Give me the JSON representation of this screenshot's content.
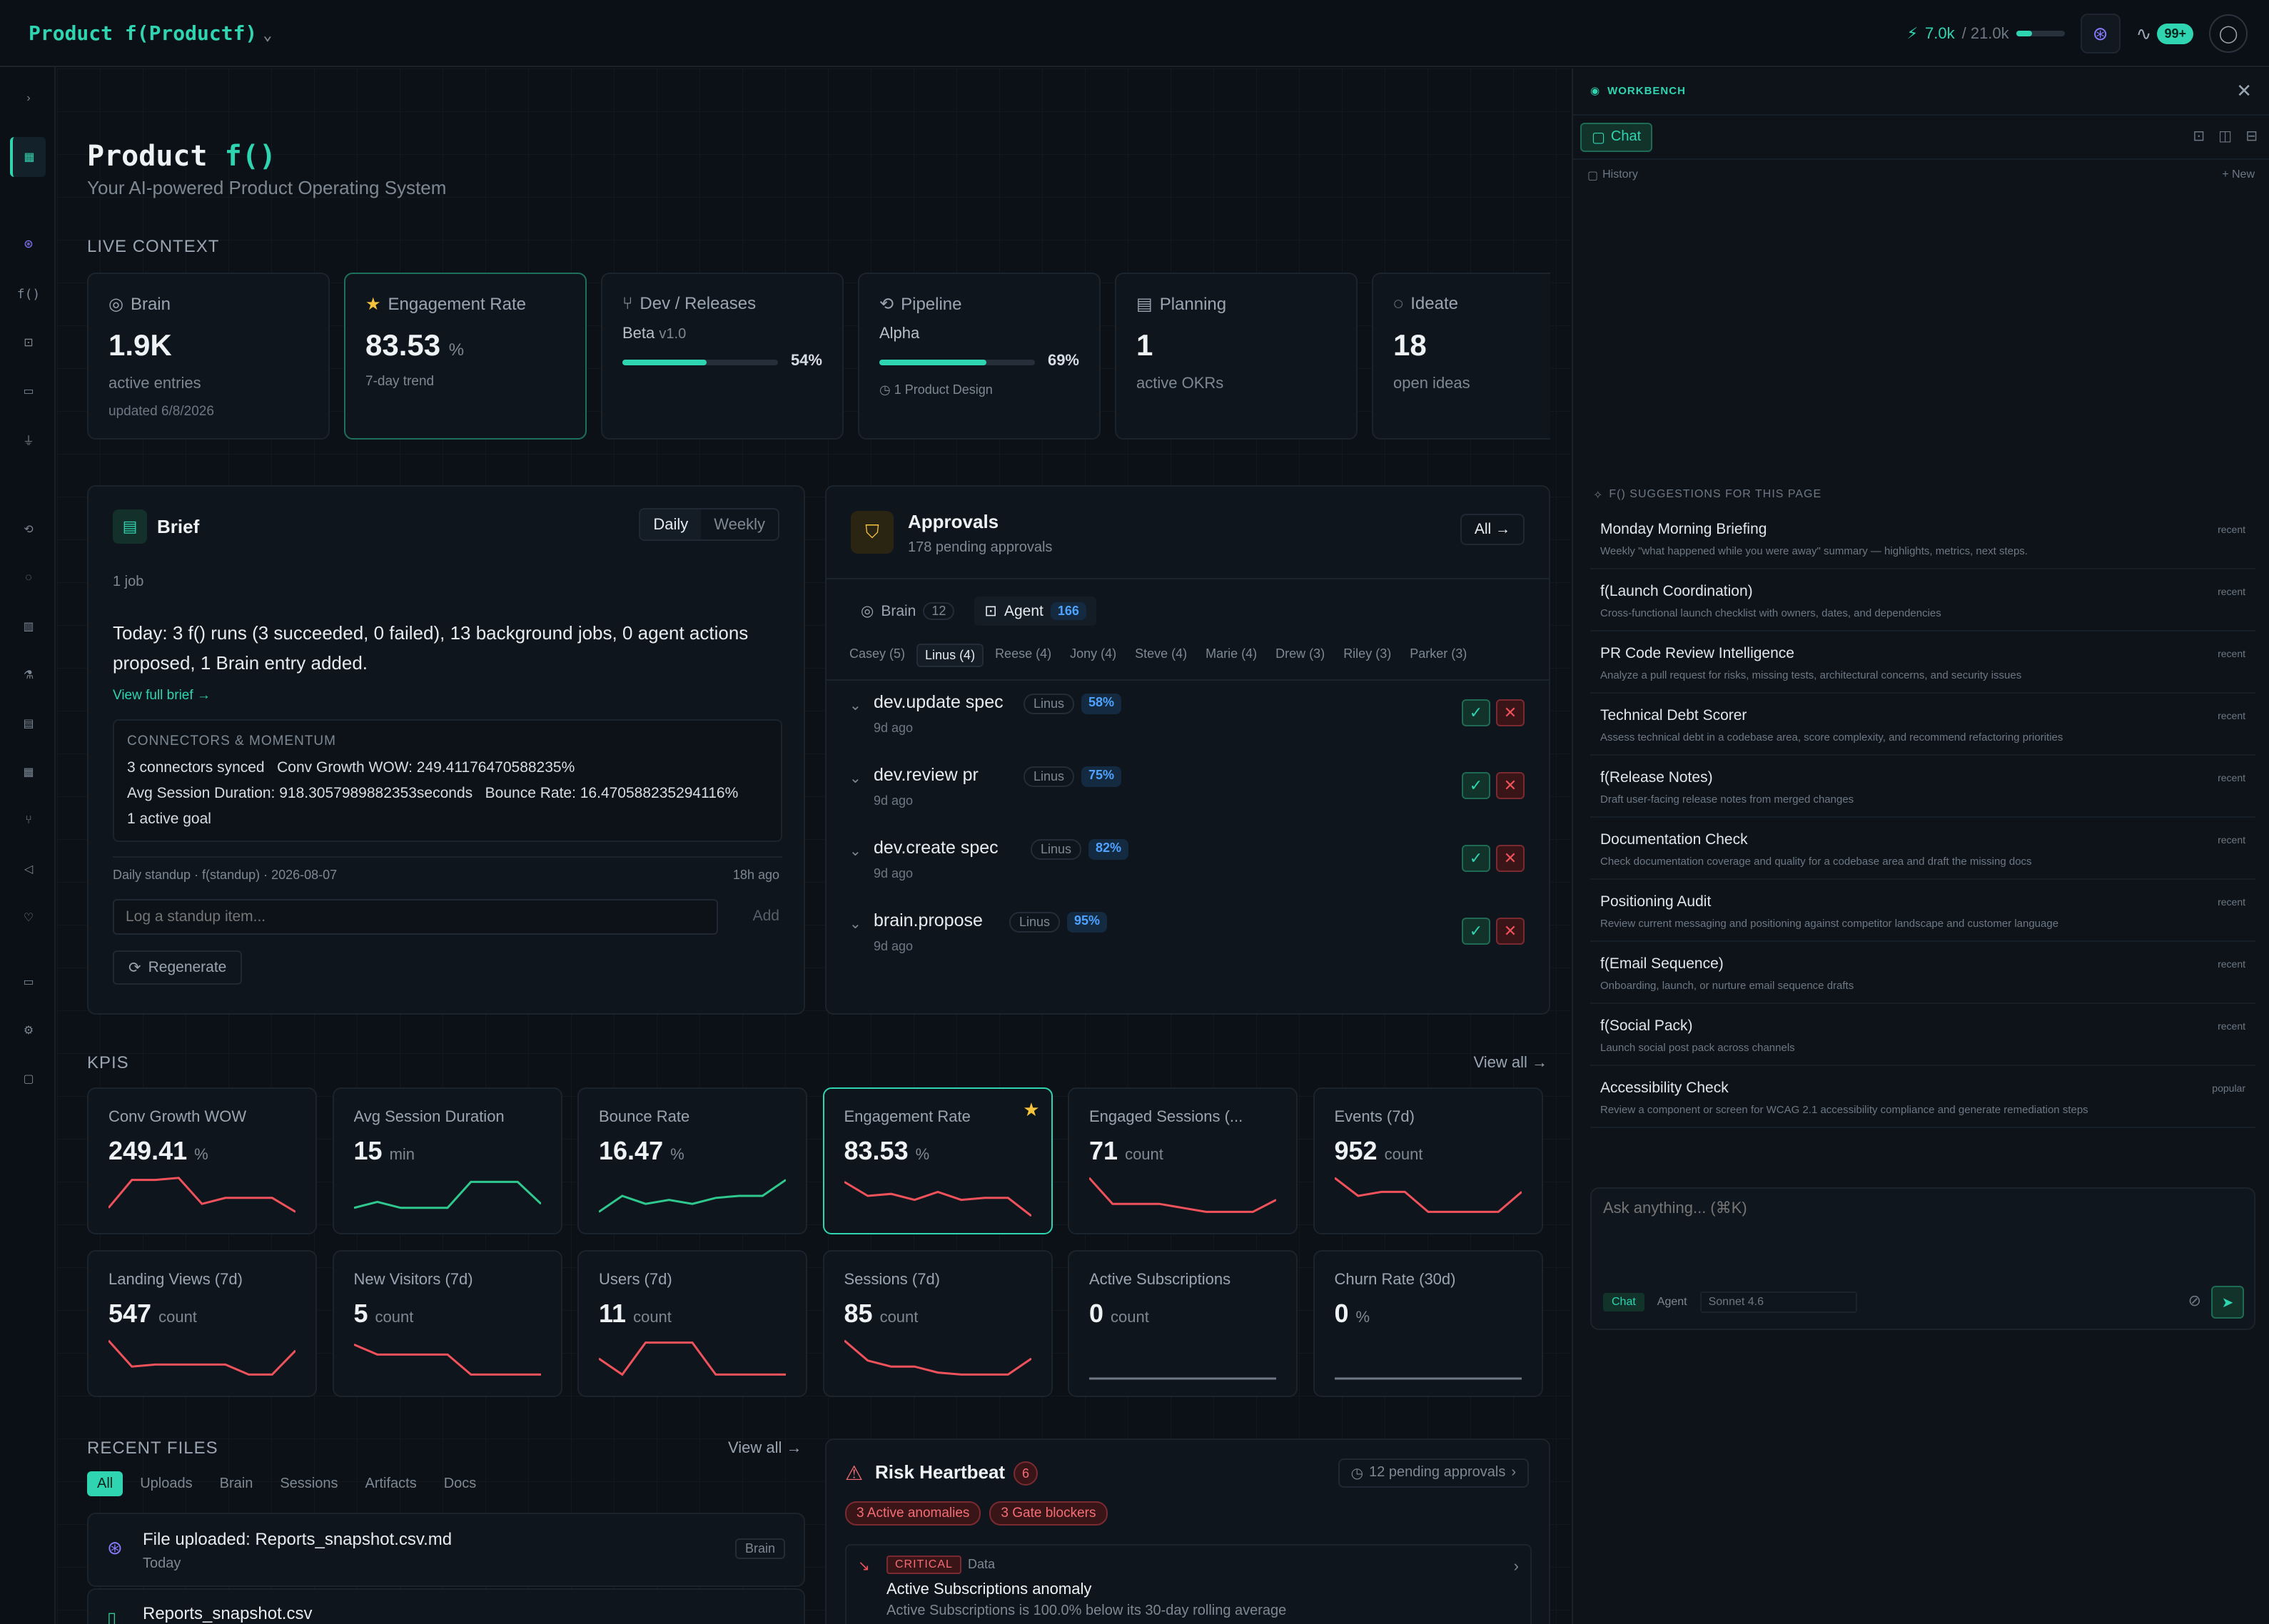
{
  "topbar": {
    "brand": "Product f(Productf)",
    "credits_used": "7.0k",
    "credits_total": "/ 21.0k",
    "credits_fraction": 0.33,
    "notif_badge": "99+"
  },
  "page": {
    "title_prefix": "Product",
    "title_fn": "f()",
    "subtitle": "Your AI-powered Product Operating System"
  },
  "live_context": {
    "heading": "LIVE CONTEXT",
    "cards": [
      {
        "title": "Brain",
        "value": "1.9K",
        "sub": "active entries",
        "sub2": "updated 6/8/2026"
      },
      {
        "title": "Engagement Rate",
        "value": "83.53",
        "unit": "%",
        "sub": "7-day trend"
      },
      {
        "title": "Dev / Releases",
        "stage": "Beta",
        "version": "v1.0",
        "progress": 54,
        "progress_label": "54%"
      },
      {
        "title": "Pipeline",
        "stage": "Alpha",
        "progress": 69,
        "progress_label": "69%",
        "sub": "1 Product Design"
      },
      {
        "title": "Planning",
        "value": "1",
        "sub": "active OKRs"
      },
      {
        "title": "Ideate",
        "value": "18",
        "sub": "open ideas"
      }
    ]
  },
  "brief": {
    "title": "Brief",
    "daily": "Daily",
    "weekly": "Weekly",
    "jobs": "1 job",
    "summary": "Today: 3 f() runs (3 succeeded, 0 failed), 13 background jobs, 0 agent actions proposed, 1 Brain entry added.",
    "view_full": "View full brief →",
    "connectors_heading": "CONNECTORS & MOMENTUM",
    "line1a": "3 connectors synced",
    "line1b": "Conv Growth WOW: 249.41176470588235%",
    "line2a": "Avg Session Duration: 918.3057989882353seconds",
    "line2b": "Bounce Rate: 16.470588235294116%",
    "line3": "1 active goal",
    "standup": "Daily standup · f(standup) · 2026-08-07",
    "standup_ago": "18h ago",
    "placeholder": "Log a standup item...",
    "add": "Add",
    "regenerate": "Regenerate"
  },
  "approvals": {
    "title": "Approvals",
    "sub": "178 pending approvals",
    "all": "All →",
    "tab_brain": "Brain",
    "tab_brain_count": "12",
    "tab_agent": "Agent",
    "tab_agent_count": "166",
    "people": [
      "Casey (5)",
      "Linus (4)",
      "Reese (4)",
      "Jony (4)",
      "Steve (4)",
      "Marie (4)",
      "Drew (3)",
      "Riley (3)",
      "Parker (3)"
    ],
    "rows": [
      {
        "name": "dev.update spec",
        "who": "Linus",
        "pct": "58%",
        "ago": "9d ago"
      },
      {
        "name": "dev.review pr",
        "who": "Linus",
        "pct": "75%",
        "ago": "9d ago"
      },
      {
        "name": "dev.create spec",
        "who": "Linus",
        "pct": "82%",
        "ago": "9d ago"
      },
      {
        "name": "brain.propose",
        "who": "Linus",
        "pct": "95%",
        "ago": "9d ago"
      }
    ]
  },
  "kpis": {
    "heading": "KPIS",
    "view_all": "View all →",
    "items": [
      {
        "title": "Conv Growth WOW",
        "value": "249.41",
        "unit": "%",
        "color": "#f0525c",
        "trend": [
          0.2,
          0.9,
          0.9,
          0.95,
          0.3,
          0.45,
          0.45,
          0.45,
          0.1
        ]
      },
      {
        "title": "Avg Session Duration",
        "value": "15",
        "unit": "min",
        "color": "#2fc98f",
        "trend": [
          0.2,
          0.35,
          0.2,
          0.2,
          0.2,
          0.85,
          0.85,
          0.85,
          0.3
        ]
      },
      {
        "title": "Bounce Rate",
        "value": "16.47",
        "unit": "%",
        "color": "#2fc98f",
        "trend": [
          0.1,
          0.5,
          0.3,
          0.4,
          0.3,
          0.45,
          0.5,
          0.5,
          0.9
        ]
      },
      {
        "title": "Engagement Rate",
        "value": "83.53",
        "unit": "%",
        "color": "#f0525c",
        "trend": [
          0.85,
          0.5,
          0.55,
          0.4,
          0.6,
          0.4,
          0.45,
          0.45,
          0.0
        ]
      },
      {
        "title": "Engaged Sessions (...",
        "value": "71",
        "unit": "count",
        "color": "#f0525c",
        "trend": [
          0.95,
          0.3,
          0.3,
          0.3,
          0.2,
          0.1,
          0.1,
          0.1,
          0.4
        ]
      },
      {
        "title": "Events (7d)",
        "value": "952",
        "unit": "count",
        "color": "#f0525c",
        "trend": [
          0.95,
          0.5,
          0.6,
          0.6,
          0.1,
          0.1,
          0.1,
          0.1,
          0.6
        ]
      },
      {
        "title": "Landing Views (7d)",
        "value": "547",
        "unit": "count",
        "color": "#f0525c",
        "trend": [
          0.95,
          0.3,
          0.35,
          0.35,
          0.35,
          0.35,
          0.1,
          0.1,
          0.7
        ]
      },
      {
        "title": "New Visitors (7d)",
        "value": "5",
        "unit": "count",
        "color": "#f0525c",
        "trend": [
          0.85,
          0.6,
          0.6,
          0.6,
          0.6,
          0.1,
          0.1,
          0.1,
          0.1
        ]
      },
      {
        "title": "Users (7d)",
        "value": "11",
        "unit": "count",
        "color": "#f0525c",
        "trend": [
          0.5,
          0.1,
          0.9,
          0.9,
          0.9,
          0.1,
          0.1,
          0.1,
          0.1
        ]
      },
      {
        "title": "Sessions (7d)",
        "value": "85",
        "unit": "count",
        "color": "#f0525c",
        "trend": [
          0.95,
          0.45,
          0.3,
          0.3,
          0.15,
          0.1,
          0.1,
          0.1,
          0.5
        ]
      },
      {
        "title": "Active Subscriptions",
        "value": "0",
        "unit": "count",
        "color": "#6d7884",
        "trend": [
          0,
          0,
          0,
          0,
          0,
          0,
          0,
          0,
          0
        ]
      },
      {
        "title": "Churn Rate (30d)",
        "value": "0",
        "unit": "%",
        "color": "#6d7884",
        "trend": [
          0,
          0,
          0,
          0,
          0,
          0,
          0,
          0,
          0
        ]
      }
    ]
  },
  "files": {
    "heading": "RECENT FILES",
    "view_all": "View all →",
    "tabs": [
      "All",
      "Uploads",
      "Brain",
      "Sessions",
      "Artifacts",
      "Docs"
    ],
    "f1": "File uploaded: Reports_snapshot.csv.md",
    "f1_when": "Today",
    "f1_tag": "Brain",
    "f2": "Reports_snapshot.csv"
  },
  "risk": {
    "title": "Risk Heartbeat",
    "count": "6",
    "pending": "12 pending approvals",
    "tag1": "3 Active anomalies",
    "tag2": "3 Gate blockers",
    "level": "CRITICAL",
    "kind": "Data",
    "item_title": "Active Subscriptions anomaly",
    "item_desc": "Active Subscriptions is 100.0% below its 30-day rolling average"
  },
  "workbench": {
    "label": "WORKBENCH",
    "chat": "Chat",
    "history": "History",
    "new": "+ New",
    "sugg_heading": "F() SUGGESTIONS FOR THIS PAGE",
    "suggestions": [
      {
        "name": "Monday Morning Briefing",
        "desc": "Weekly \"what happened while you were away\" summary — highlights, metrics, next steps.",
        "badge": "recent"
      },
      {
        "name": "f(Launch Coordination)",
        "desc": "Cross-functional launch checklist with owners, dates, and dependencies",
        "badge": "recent"
      },
      {
        "name": "PR Code Review Intelligence",
        "desc": "Analyze a pull request for risks, missing tests, architectural concerns, and security issues",
        "badge": "recent"
      },
      {
        "name": "Technical Debt Scorer",
        "desc": "Assess technical debt in a codebase area, score complexity, and recommend refactoring priorities",
        "badge": "recent"
      },
      {
        "name": "f(Release Notes)",
        "desc": "Draft user-facing release notes from merged changes",
        "badge": "recent"
      },
      {
        "name": "Documentation Check",
        "desc": "Check documentation coverage and quality for a codebase area and draft the missing docs",
        "badge": "recent"
      },
      {
        "name": "Positioning Audit",
        "desc": "Review current messaging and positioning against competitor landscape and customer language",
        "badge": "recent"
      },
      {
        "name": "f(Email Sequence)",
        "desc": "Onboarding, launch, or nurture email sequence drafts",
        "badge": "recent"
      },
      {
        "name": "f(Social Pack)",
        "desc": "Launch social post pack across channels",
        "badge": "recent"
      },
      {
        "name": "Accessibility Check",
        "desc": "Review a component or screen for WCAG 2.1 accessibility compliance and generate remediation steps",
        "badge": "popular"
      }
    ],
    "input_placeholder": "Ask anything... (⌘K)",
    "mode_chat": "Chat",
    "mode_agent": "Agent",
    "model": "Sonnet 4.6"
  }
}
